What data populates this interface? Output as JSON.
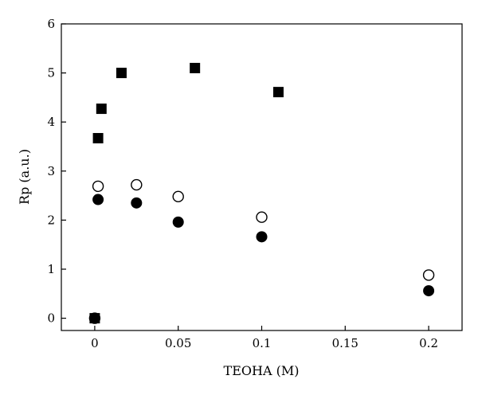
{
  "chart_data": {
    "type": "scatter",
    "xlabel": "TEOHA (M)",
    "ylabel": "Rp (a.u.)",
    "xlim": [
      -0.02,
      0.22
    ],
    "ylim": [
      -0.25,
      6.0
    ],
    "x_ticks": [
      0,
      0.05,
      0.1,
      0.15,
      0.2
    ],
    "x_tick_labels": [
      "0",
      "0.05",
      "0.1",
      "0.15",
      "0.2"
    ],
    "y_ticks": [
      0,
      1,
      2,
      3,
      4,
      5,
      6
    ],
    "y_tick_labels": [
      "0",
      "1",
      "2",
      "3",
      "4",
      "5",
      "6"
    ],
    "grid": false,
    "series": [
      {
        "marker": "filled-square",
        "color": "#000000",
        "points": [
          {
            "x": 0.0,
            "y": 0.0
          },
          {
            "x": 0.002,
            "y": 3.67
          },
          {
            "x": 0.004,
            "y": 4.27
          },
          {
            "x": 0.016,
            "y": 5.0
          },
          {
            "x": 0.06,
            "y": 5.1
          },
          {
            "x": 0.11,
            "y": 4.61
          }
        ]
      },
      {
        "marker": "open-circle",
        "color": "#000000",
        "points": [
          {
            "x": 0.0,
            "y": 0.0
          },
          {
            "x": 0.002,
            "y": 2.69
          },
          {
            "x": 0.025,
            "y": 2.72
          },
          {
            "x": 0.05,
            "y": 2.48
          },
          {
            "x": 0.1,
            "y": 2.06
          },
          {
            "x": 0.2,
            "y": 0.88
          }
        ]
      },
      {
        "marker": "filled-circle",
        "color": "#000000",
        "points": [
          {
            "x": 0.0,
            "y": 0.0
          },
          {
            "x": 0.002,
            "y": 2.42
          },
          {
            "x": 0.025,
            "y": 2.35
          },
          {
            "x": 0.05,
            "y": 1.96
          },
          {
            "x": 0.1,
            "y": 1.66
          },
          {
            "x": 0.2,
            "y": 0.56
          }
        ]
      }
    ]
  }
}
